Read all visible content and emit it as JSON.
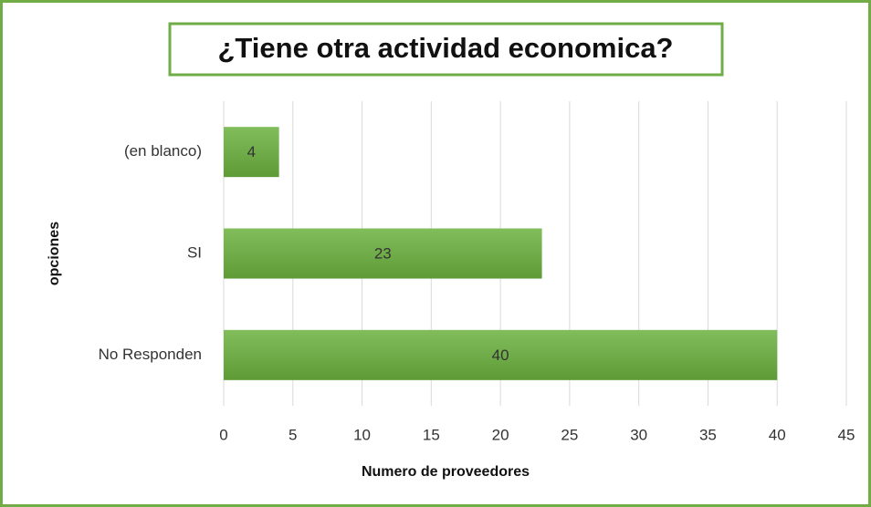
{
  "chart_data": {
    "type": "bar",
    "orientation": "horizontal",
    "title": "¿Tiene otra actividad economica?",
    "xlabel": "Numero de proveedores",
    "ylabel": "opciones",
    "categories": [
      "(en blanco)",
      "SI",
      "No Responden"
    ],
    "values": [
      4,
      23,
      40
    ],
    "color": "#70ad47",
    "xlim": [
      0,
      45
    ],
    "xticks": [
      0,
      5,
      10,
      15,
      20,
      25,
      30,
      35,
      40,
      45
    ],
    "grid": true
  }
}
